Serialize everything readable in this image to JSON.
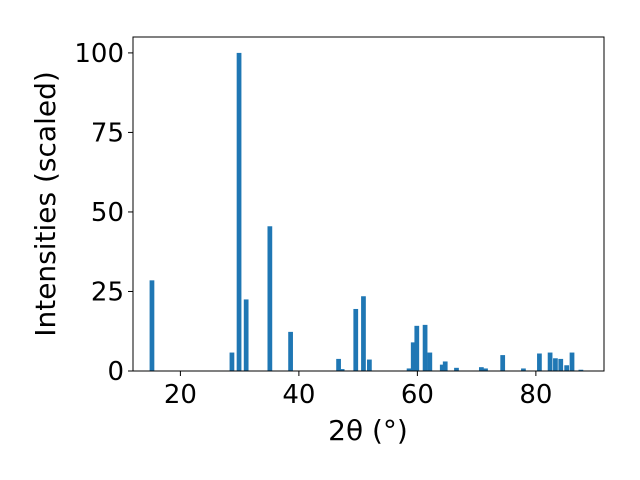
{
  "chart_data": {
    "type": "bar",
    "xlabel": "2θ (°)",
    "ylabel": "Intensities (scaled)",
    "xlim": [
      12,
      91.5
    ],
    "ylim": [
      0,
      105
    ],
    "xticks": [
      20,
      40,
      60,
      80
    ],
    "yticks": [
      0,
      25,
      50,
      75,
      100
    ],
    "xtick_labels": [
      "20",
      "40",
      "60",
      "80"
    ],
    "ytick_labels": [
      "0",
      "25",
      "50",
      "75",
      "100"
    ],
    "bar_width_deg": 0.8,
    "color": "#1f77b4",
    "grid": false,
    "x": [
      15.2,
      28.7,
      29.9,
      31.1,
      35.1,
      38.6,
      46.7,
      47.3,
      49.6,
      50.9,
      51.9,
      58.6,
      59.3,
      59.9,
      61.3,
      62.1,
      64.2,
      64.7,
      66.6,
      70.8,
      71.5,
      74.4,
      77.9,
      80.6,
      82.4,
      83.3,
      84.2,
      85.2,
      86.1,
      87.6
    ],
    "values": [
      28.5,
      5.8,
      100,
      22.5,
      45.5,
      12.3,
      3.8,
      0.6,
      19.5,
      23.5,
      3.6,
      0.8,
      9.0,
      14.2,
      14.5,
      5.8,
      2.0,
      3.0,
      1.0,
      1.2,
      0.8,
      5.0,
      0.8,
      5.5,
      5.8,
      4.0,
      3.8,
      1.8,
      5.8,
      0.4
    ]
  }
}
